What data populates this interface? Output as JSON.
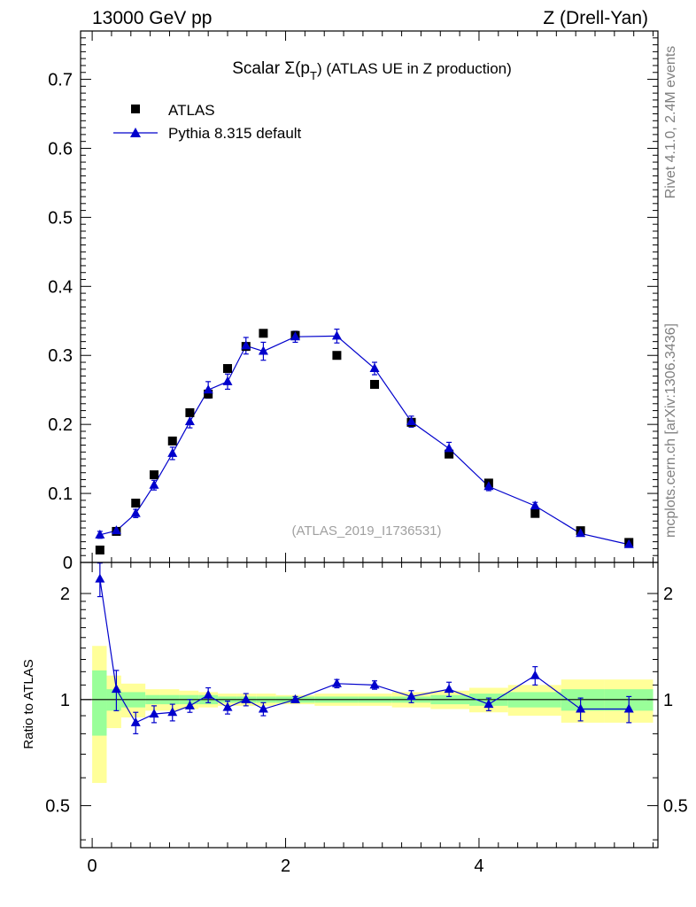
{
  "header": {
    "left": "13000 GeV pp",
    "right": "Z (Drell-Yan)"
  },
  "side_labels": {
    "rivet": "Rivet 4.1.0,  2.4M events",
    "mcplots": "mcplots.cern.ch [arXiv:1306.3436]"
  },
  "chart_data": {
    "type": "scatter",
    "title_main": "Scalar Σ(p",
    "title_sub": "T",
    "title_rest": ") (ATLAS UE in Z production)",
    "watermark": "(ATLAS_2019_I1736531)",
    "xlim": [
      -0.12,
      5.85
    ],
    "ylim": [
      0,
      0.77
    ],
    "x_ticks": [
      0,
      2,
      4
    ],
    "y_ticks": [
      "0",
      "0.1",
      "0.2",
      "0.3",
      "0.4",
      "0.5",
      "0.6",
      "0.7"
    ],
    "legend": {
      "placement": "top-left",
      "data_label": "ATLAS",
      "mc_label": "Pythia 8.315 default"
    },
    "colors": {
      "data": "#000000",
      "mc": "#0000cc",
      "band_inner": "#99ff99",
      "band_outer": "#ffff99"
    },
    "x_edges": [
      0.0,
      0.15,
      0.3,
      0.55,
      0.7,
      0.9,
      1.1,
      1.3,
      1.5,
      1.7,
      1.9,
      2.3,
      2.75,
      3.1,
      3.5,
      3.9,
      4.3,
      4.85,
      5.3,
      5.8
    ],
    "data_points": {
      "x": [
        0.08,
        0.25,
        0.45,
        0.64,
        0.83,
        1.01,
        1.2,
        1.4,
        1.59,
        1.77,
        2.1,
        2.53,
        2.92,
        3.3,
        3.69,
        4.1,
        4.58,
        5.05,
        5.55
      ],
      "y": [
        0.018,
        0.045,
        0.086,
        0.127,
        0.176,
        0.217,
        0.244,
        0.281,
        0.313,
        0.332,
        0.329,
        0.3,
        0.258,
        0.203,
        0.157,
        0.115,
        0.071,
        0.046,
        0.029
      ]
    },
    "mc_points": {
      "y": [
        0.04,
        0.046,
        0.071,
        0.112,
        0.158,
        0.204,
        0.25,
        0.262,
        0.314,
        0.306,
        0.327,
        0.328,
        0.281,
        0.204,
        0.165,
        0.11,
        0.082,
        0.042,
        0.026
      ],
      "err": [
        0.005,
        0.004,
        0.006,
        0.007,
        0.009,
        0.009,
        0.012,
        0.011,
        0.012,
        0.013,
        0.008,
        0.01,
        0.009,
        0.008,
        0.009,
        0.006,
        0.005,
        0.004,
        0.003
      ]
    },
    "ratio": {
      "ylabel": "Ratio to ATLAS",
      "ylim": [
        0.38,
        2.45
      ],
      "y_ticks": [
        "0.5",
        "1",
        "2"
      ],
      "values": [
        2.2,
        1.07,
        0.86,
        0.91,
        0.92,
        0.96,
        1.03,
        0.95,
        1.0,
        0.94,
        1.0,
        1.11,
        1.1,
        1.02,
        1.07,
        0.97,
        1.17,
        0.94,
        0.94
      ],
      "errors": [
        0.24,
        0.14,
        0.06,
        0.05,
        0.05,
        0.04,
        0.05,
        0.04,
        0.04,
        0.04,
        0.02,
        0.03,
        0.03,
        0.04,
        0.05,
        0.04,
        0.07,
        0.07,
        0.08
      ],
      "band_inner": [
        0.21,
        0.07,
        0.05,
        0.03,
        0.03,
        0.03,
        0.03,
        0.02,
        0.02,
        0.02,
        0.02,
        0.02,
        0.02,
        0.02,
        0.03,
        0.04,
        0.05,
        0.07,
        0.07
      ],
      "band_outer": [
        0.42,
        0.17,
        0.11,
        0.07,
        0.07,
        0.06,
        0.05,
        0.04,
        0.04,
        0.04,
        0.03,
        0.04,
        0.04,
        0.05,
        0.06,
        0.08,
        0.1,
        0.14,
        0.14
      ]
    }
  }
}
